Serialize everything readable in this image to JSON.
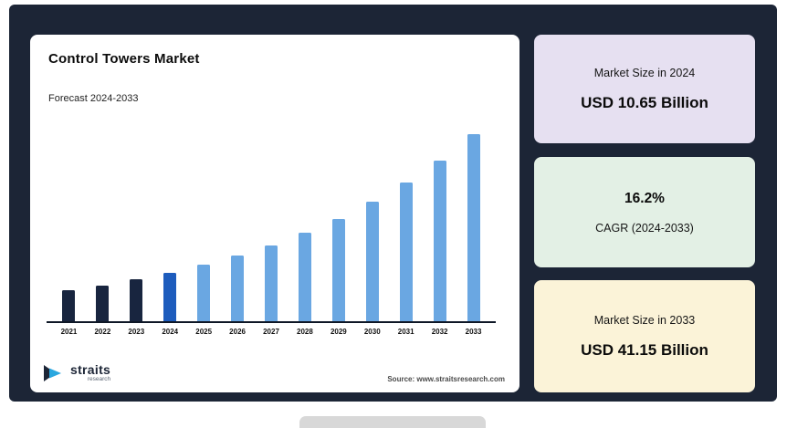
{
  "chart_card": {
    "title": "Control Towers Market",
    "subtitle": "Forecast 2024-2033",
    "source": "Source: www.straitsresearch.com",
    "logo_name": "straits",
    "logo_sub": "research"
  },
  "stat_cards": [
    {
      "label": "Market Size in 2024",
      "value": "USD 10.65 Billion",
      "bg": "#e6e0f1"
    },
    {
      "value": "16.2%",
      "label": "CAGR (2024-2033)",
      "bg": "#e3f0e5"
    },
    {
      "label": "Market Size in 2033",
      "value": "USD 41.15 Billion",
      "bg": "#fbf3d8"
    }
  ],
  "chart_data": {
    "type": "bar",
    "title": "Control Towers Market",
    "subtitle": "Forecast 2024-2033",
    "categories": [
      "2021",
      "2022",
      "2023",
      "2024",
      "2025",
      "2026",
      "2027",
      "2028",
      "2029",
      "2030",
      "2031",
      "2032",
      "2033"
    ],
    "values": [
      6.79,
      7.89,
      9.17,
      10.65,
      12.38,
      14.38,
      16.71,
      19.42,
      22.56,
      26.22,
      30.47,
      35.4,
      41.15
    ],
    "unit": "USD Billion",
    "bar_colors": [
      "#18253f",
      "#18253f",
      "#18253f",
      "#1d5cbd",
      "#6aa7e2",
      "#6aa7e2",
      "#6aa7e2",
      "#6aa7e2",
      "#6aa7e2",
      "#6aa7e2",
      "#6aa7e2",
      "#6aa7e2",
      "#6aa7e2"
    ],
    "xlabel": "",
    "ylabel": "",
    "ylim": [
      0,
      41.15
    ],
    "grid": false,
    "legend": false,
    "annotations": {
      "market_size_2024": "USD 10.65 Billion",
      "cagr_2024_2033": "16.2%",
      "market_size_2033": "USD 41.15 Billion"
    }
  },
  "colors": {
    "panel_bg": "#1c2536",
    "card_bg": "#ffffff",
    "bar_light_blue": "#6aa7e2",
    "bar_highlight_blue": "#1d5cbd",
    "bar_dark_navy": "#18253f",
    "axis": "#0e1726",
    "stat1_bg": "#e6e0f1",
    "stat2_bg": "#e3f0e5",
    "stat3_bg": "#fbf3d8"
  }
}
